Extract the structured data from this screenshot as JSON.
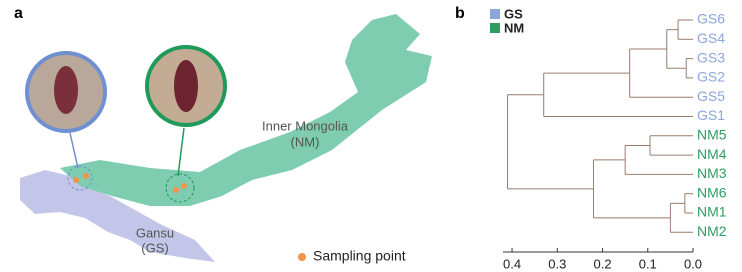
{
  "panel_labels": [
    "a",
    "b"
  ],
  "map": {
    "regions": [
      {
        "name": "Inner Mongolia",
        "abbr": "(NM)"
      },
      {
        "name": "Gansu",
        "abbr": "(GS)"
      }
    ],
    "legend": "Sampling point"
  },
  "chart_data": {
    "type": "dendrogram",
    "groups": [
      {
        "name": "GS",
        "color": "#8aa6dc"
      },
      {
        "name": "NM",
        "color": "#2f9d62"
      }
    ],
    "leaves": [
      {
        "label": "GS6",
        "group": 0
      },
      {
        "label": "GS4",
        "group": 0
      },
      {
        "label": "GS3",
        "group": 0
      },
      {
        "label": "GS2",
        "group": 0
      },
      {
        "label": "GS5",
        "group": 0
      },
      {
        "label": "GS1",
        "group": 0
      },
      {
        "label": "NM5",
        "group": 1
      },
      {
        "label": "NM4",
        "group": 1
      },
      {
        "label": "NM3",
        "group": 1
      },
      {
        "label": "NM6",
        "group": 1
      },
      {
        "label": "NM1",
        "group": 1
      },
      {
        "label": "NM2",
        "group": 1
      }
    ],
    "merges": [
      {
        "join": [
          0,
          1
        ],
        "height": 0.033
      },
      {
        "join": [
          2,
          3
        ],
        "height": 0.015
      },
      {
        "join": [
          12,
          13
        ],
        "height": 0.058
      },
      {
        "join": [
          14,
          4
        ],
        "height": 0.14
      },
      {
        "join": [
          15,
          5
        ],
        "height": 0.33
      },
      {
        "join": [
          6,
          7
        ],
        "height": 0.095
      },
      {
        "join": [
          17,
          8
        ],
        "height": 0.15
      },
      {
        "join": [
          9,
          10
        ],
        "height": 0.018
      },
      {
        "join": [
          19,
          11
        ],
        "height": 0.05
      },
      {
        "join": [
          18,
          20
        ],
        "height": 0.22
      },
      {
        "join": [
          16,
          21
        ],
        "height": 0.41
      }
    ],
    "xlim": [
      0.42,
      0
    ],
    "xticks": [
      0.4,
      0.3,
      0.2,
      0.1,
      {
        "value": 0,
        "label": "0.0"
      }
    ]
  }
}
